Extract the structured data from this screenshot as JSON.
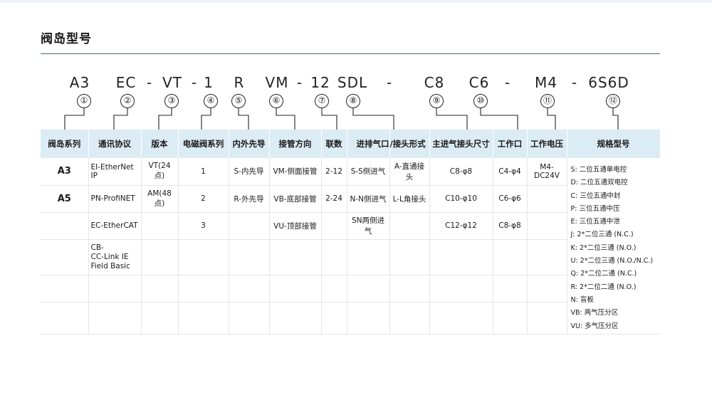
{
  "title": "阀岛型号",
  "code_segments": [
    "A3",
    "EC",
    "-",
    "VT",
    "-",
    "1",
    "R",
    "VM",
    "-",
    "12",
    "SDL",
    "-",
    "C8",
    "C6",
    "-",
    "M4",
    "-",
    "6S6D"
  ],
  "circle_numbers": [
    "①",
    "②",
    "③",
    "④",
    "⑤",
    "⑥",
    "⑦",
    "⑧",
    "⑨",
    "⑩",
    "⑪",
    "⑫"
  ],
  "headers": [
    "阀岛系列",
    "通讯协议",
    "版本",
    "电磁阀系列",
    "内外先导",
    "接管方向",
    "联数",
    "进排气口",
    "/接头形式",
    "主进气接头尺寸",
    "工作口",
    "工作电压",
    "规格型号"
  ],
  "rows": [
    [
      "A3",
      "EI-EtherNet IP",
      "VT(24点)",
      "1",
      "S-内先导",
      "VM-侧面接管",
      "2-12",
      "S-S侧进气",
      "A-直通接头",
      "C8-φ8",
      "C4-φ4",
      "M4-DC24V"
    ],
    [
      "A5",
      "PN-ProfiNET",
      "AM(48点)",
      "2",
      "R-外先导",
      "VB-底部接管",
      "2-24",
      "N-N侧进气",
      "L-L角接头",
      "C10-φ10",
      "C6-φ6",
      ""
    ],
    [
      "",
      "EC-EtherCAT",
      "",
      "3",
      "",
      "VU-顶部接管",
      "",
      "SN两侧进气",
      "",
      "C12-φ12",
      "C8-φ8",
      ""
    ],
    [
      "",
      "CB-\nCC-Link IE\nField Basic",
      "",
      "",
      "",
      "",
      "",
      "",
      "",
      "",
      "",
      ""
    ],
    [
      "",
      "",
      "",
      "",
      "",
      "",
      "",
      "",
      "",
      "",
      "",
      ""
    ],
    [
      "",
      "",
      "",
      "",
      "",
      "",
      "",
      "",
      "",
      "",
      "",
      ""
    ]
  ],
  "spec_models": [
    "S: 二位五通单电控",
    "D: 二位五通双电控",
    "C: 三位五通中封",
    "P: 三位五通中压",
    "E: 三位五通中泄",
    "J: 2*二位三通 (N.C.)",
    "K: 2*二位三通 (N.O.)",
    "U: 2*二位三通 (N.O./N.C.)",
    "Q: 2*二位二通 (N.C.)",
    "R: 2*二位二通 (N.O.)",
    "N: 盲板",
    "VB: 两气压分区",
    "VU: 多气压分区"
  ]
}
